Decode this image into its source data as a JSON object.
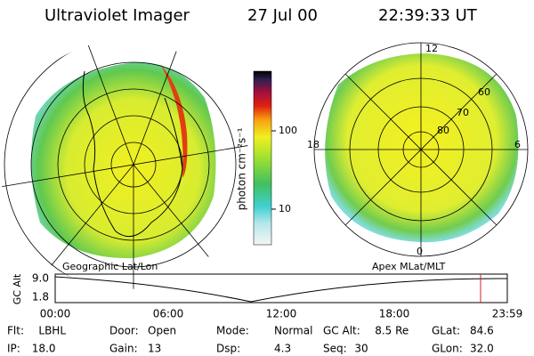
{
  "header": {
    "instrument": "Ultraviolet Imager",
    "date": "27 Jul 00",
    "time": "22:39:33 UT"
  },
  "colorbar": {
    "label": "photon cm⁻²s⁻¹",
    "ticks": [
      "100",
      "10"
    ]
  },
  "polar_plot": {
    "labels": [
      "12",
      "0",
      "18",
      "6",
      "60",
      "70",
      "80"
    ]
  },
  "altitude_plot": {
    "left_title": "Geographic Lat/Lon",
    "right_title": "Apex MLat/MLT",
    "axis_label": "GC Alt",
    "yticks": [
      "9.0",
      "1.8"
    ],
    "xticks": [
      "00:00",
      "06:00",
      "12:00",
      "18:00",
      "23:59"
    ]
  },
  "info": {
    "rows": [
      [
        [
          "Flt:",
          "LBHL"
        ],
        [
          "Door:",
          "Open"
        ],
        [
          "Mode:",
          "Normal"
        ],
        [
          "GC Alt:",
          "8.5 Re"
        ],
        [
          "GLat:",
          "84.6"
        ]
      ],
      [
        [
          "IP:",
          "18.0"
        ],
        [
          "Gain:",
          "13"
        ],
        [
          "Dsp:",
          "4.3"
        ],
        [
          "Seq:",
          "30"
        ],
        [
          "GLon:",
          "32.0"
        ]
      ]
    ]
  }
}
